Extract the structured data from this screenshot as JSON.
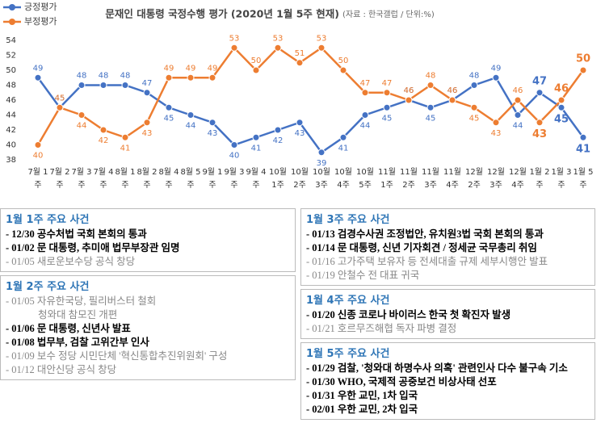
{
  "chart_data": {
    "type": "line",
    "title": "문재인 대통령 국정수행 평가 (2020년 1월 5주 현재)",
    "subtitle": "(자료 : 한국갤럽 / 단위:%)",
    "categories": [
      "7월 1주",
      "7월 2주",
      "7월 3주",
      "7월 4주",
      "8월 1주",
      "8월 2주",
      "8월 4주",
      "8월 5주",
      "9월 1주",
      "9월 3주",
      "9월 4주",
      "10월 1주",
      "10월 2주",
      "10월 3주",
      "10월 4주",
      "10월 5주",
      "11월 1주",
      "11월 2주",
      "11월 3주",
      "11월 4주",
      "12월 2주",
      "12월 3주",
      "12월 4주",
      "1월 2주",
      "1월 3주",
      "1월 5주"
    ],
    "series": [
      {
        "name": "긍정평가",
        "color": "#4472c4",
        "values": [
          49,
          45,
          48,
          48,
          48,
          47,
          45,
          44,
          43,
          40,
          41,
          42,
          43,
          39,
          41,
          44,
          45,
          46,
          45,
          46,
          48,
          49,
          44,
          47,
          45,
          41
        ]
      },
      {
        "name": "부정평가",
        "color": "#ed7d31",
        "values": [
          40,
          45,
          44,
          42,
          41,
          43,
          49,
          49,
          49,
          53,
          50,
          53,
          51,
          53,
          50,
          47,
          47,
          46,
          48,
          46,
          45,
          43,
          46,
          43,
          46,
          50
        ]
      }
    ],
    "ylim": [
      38,
      54
    ],
    "yticks": [
      38,
      40,
      42,
      44,
      46,
      48,
      50,
      52,
      54
    ],
    "legend": "top-left"
  },
  "events": [
    {
      "title": "1월 1주 주요 사건",
      "items": [
        {
          "text": "- 12/30 공수처법 국회 본회의 통과",
          "bold": true
        },
        {
          "text": "- 01/02 문 대통령, 추미애 법무부장관 임명",
          "bold": true
        },
        {
          "text": "- 01/05 새로운보수당 공식 창당",
          "bold": false
        }
      ]
    },
    {
      "title": "1월 2주 주요 사건",
      "items": [
        {
          "text": "- 01/05 자유한국당, 필리버스터 철회",
          "bold": false
        },
        {
          "text": "청와대 참모진 개편",
          "bold": false,
          "cont": true
        },
        {
          "text": "- 01/06 문 대통령, 신년사 발표",
          "bold": true
        },
        {
          "text": "- 01/08 법무부, 검찰 고위간부 인사",
          "bold": true
        },
        {
          "text": "- 01/09 보수 정당 시민단체 '혁신통합추진위원회' 구성",
          "bold": false
        },
        {
          "text": "- 01/12 대안신당 공식 창당",
          "bold": false
        }
      ]
    },
    {
      "title": "1월 3주 주요 사건",
      "items": [
        {
          "text": "- 01/13 검경수사권 조정법안, 유치원3법 국회 본회의 통과",
          "bold": true
        },
        {
          "text": "- 01/14 문 대통령, 신년 기자회견 / 정세균 국무총리 취임",
          "bold": true
        },
        {
          "text": "- 01/16 고가주택 보유자 등 전세대출 규제 세부시행안 발표",
          "bold": false
        },
        {
          "text": "- 01/19 안철수 전 대표 귀국",
          "bold": false
        }
      ]
    },
    {
      "title": "1월 4주 주요 사건",
      "items": [
        {
          "text": "- 01/20 신종 코로나 바이러스 한국 첫 확진자 발생",
          "bold": true
        },
        {
          "text": "- 01/21 호르무즈해협 독자 파병 결정",
          "bold": false
        }
      ]
    },
    {
      "title": "1월 5주 주요 사건",
      "items": [
        {
          "text": "- 01/29 검찰, '청와대 하명수사 의혹' 관련인사 다수 불구속 기소",
          "bold": true
        },
        {
          "text": "- 01/30 WHO, 국제적 공중보건 비상사태 선포",
          "bold": true
        },
        {
          "text": "- 01/31 우한 교민, 1차 입국",
          "bold": true
        },
        {
          "text": "- 02/01 우한 교민, 2차 입국",
          "bold": true
        }
      ]
    }
  ]
}
